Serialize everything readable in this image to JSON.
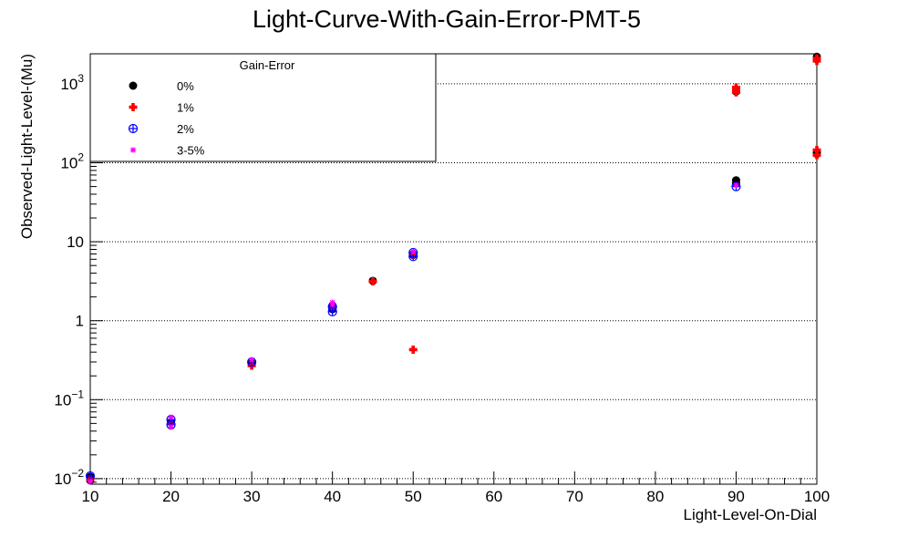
{
  "chart_data": {
    "type": "scatter",
    "title": "Light-Curve-With-Gain-Error-PMT-5",
    "xlabel": "Light-Level-On-Dial",
    "ylabel": "Observed-Light-Level-(Mu)",
    "xlim": [
      10,
      100
    ],
    "ylim": [
      0.0085,
      2400
    ],
    "yscale": "log",
    "grid": "horizontal",
    "x_ticks": [
      "10",
      "20",
      "30",
      "40",
      "50",
      "60",
      "70",
      "80",
      "90",
      "100"
    ],
    "y_ticks": [
      {
        "value": 0.01,
        "base": "10",
        "exp": "−2"
      },
      {
        "value": 0.1,
        "base": "10",
        "exp": "−1"
      },
      {
        "value": 1,
        "base": "1",
        "exp": ""
      },
      {
        "value": 10,
        "base": "10",
        "exp": ""
      },
      {
        "value": 100,
        "base": "10",
        "exp": "2"
      },
      {
        "value": 1000,
        "base": "10",
        "exp": "3"
      }
    ],
    "legend": {
      "title": "Gain-Error",
      "placement": "top-left"
    },
    "series": [
      {
        "name": "0%",
        "color": "#000000",
        "marker": "circle",
        "points": [
          [
            10,
            0.0105
          ],
          [
            10,
            0.0095
          ],
          [
            20,
            0.052
          ],
          [
            30,
            0.29
          ],
          [
            40,
            1.4
          ],
          [
            40,
            1.55
          ],
          [
            45,
            3.2
          ],
          [
            50,
            7.0
          ],
          [
            50,
            6.8
          ],
          [
            90,
            60
          ],
          [
            90,
            55
          ],
          [
            90,
            800
          ],
          [
            100,
            2200
          ],
          [
            100,
            2050
          ],
          [
            100,
            130
          ],
          [
            100,
            135
          ]
        ]
      },
      {
        "name": "1%",
        "color": "#ff0000",
        "marker": "cross",
        "points": [
          [
            10,
            0.0098
          ],
          [
            20,
            0.05
          ],
          [
            30,
            0.27
          ],
          [
            40,
            1.45
          ],
          [
            45,
            3.15
          ],
          [
            50,
            0.43
          ],
          [
            50,
            6.9
          ],
          [
            90,
            780
          ],
          [
            90,
            900
          ],
          [
            90,
            840
          ],
          [
            100,
            1950
          ],
          [
            100,
            2100
          ],
          [
            100,
            125
          ],
          [
            100,
            145
          ]
        ]
      },
      {
        "name": "2%",
        "color": "#0000ff",
        "marker": "circle-plus",
        "points": [
          [
            10,
            0.0108
          ],
          [
            20,
            0.048
          ],
          [
            20,
            0.056
          ],
          [
            30,
            0.3
          ],
          [
            40,
            1.3
          ],
          [
            40,
            1.5
          ],
          [
            50,
            6.5
          ],
          [
            50,
            7.3
          ],
          [
            90,
            50
          ]
        ]
      },
      {
        "name": "3-5%",
        "color": "#ff00ff",
        "marker": "star",
        "points": [
          [
            10,
            0.0092
          ],
          [
            20,
            0.045
          ],
          [
            20,
            0.06
          ],
          [
            30,
            0.32
          ],
          [
            40,
            1.7
          ],
          [
            40,
            1.6
          ],
          [
            50,
            7.5
          ],
          [
            90,
            52
          ]
        ]
      }
    ]
  }
}
